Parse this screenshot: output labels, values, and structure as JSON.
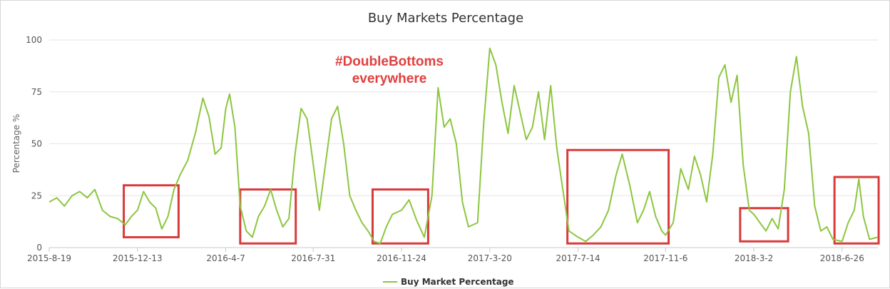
{
  "chart_data": {
    "type": "line",
    "title": "Buy Markets Percentage",
    "ylabel": "Percentage %",
    "xlabel": "",
    "ylim": [
      0,
      100
    ],
    "yticks": [
      0,
      25,
      50,
      75,
      100
    ],
    "grid": true,
    "legend_position": "bottom-center",
    "x_tick_labels": [
      "2015-8-19",
      "2015-12-13",
      "2016-4-7",
      "2016-7-31",
      "2016-11-24",
      "2017-3-20",
      "2017-7-14",
      "2017-11-6",
      "2018-3-2",
      "2018-6-26"
    ],
    "line_color": "#8cc63f",
    "series": [
      {
        "name": "Buy Market Percentage",
        "points": [
          [
            "2015-08-19",
            22
          ],
          [
            "2015-08-29",
            24
          ],
          [
            "2015-09-08",
            20
          ],
          [
            "2015-09-18",
            25
          ],
          [
            "2015-09-28",
            27
          ],
          [
            "2015-10-08",
            24
          ],
          [
            "2015-10-18",
            28
          ],
          [
            "2015-10-28",
            18
          ],
          [
            "2015-11-07",
            15
          ],
          [
            "2015-11-17",
            14
          ],
          [
            "2015-11-27",
            11
          ],
          [
            "2015-12-05",
            15
          ],
          [
            "2015-12-13",
            18
          ],
          [
            "2015-12-21",
            27
          ],
          [
            "2015-12-29",
            22
          ],
          [
            "2016-01-06",
            19
          ],
          [
            "2016-01-14",
            9
          ],
          [
            "2016-01-22",
            15
          ],
          [
            "2016-01-30",
            28
          ],
          [
            "2016-02-07",
            35
          ],
          [
            "2016-02-17",
            42
          ],
          [
            "2016-02-27",
            55
          ],
          [
            "2016-03-08",
            72
          ],
          [
            "2016-03-16",
            63
          ],
          [
            "2016-03-24",
            45
          ],
          [
            "2016-04-01",
            48
          ],
          [
            "2016-04-07",
            67
          ],
          [
            "2016-04-12",
            74
          ],
          [
            "2016-04-19",
            58
          ],
          [
            "2016-04-26",
            20
          ],
          [
            "2016-05-04",
            8
          ],
          [
            "2016-05-12",
            5
          ],
          [
            "2016-05-20",
            15
          ],
          [
            "2016-05-28",
            20
          ],
          [
            "2016-06-05",
            28
          ],
          [
            "2016-06-13",
            18
          ],
          [
            "2016-06-21",
            10
          ],
          [
            "2016-06-29",
            14
          ],
          [
            "2016-07-07",
            45
          ],
          [
            "2016-07-15",
            67
          ],
          [
            "2016-07-23",
            62
          ],
          [
            "2016-07-31",
            40
          ],
          [
            "2016-08-08",
            18
          ],
          [
            "2016-08-16",
            40
          ],
          [
            "2016-08-24",
            62
          ],
          [
            "2016-09-01",
            68
          ],
          [
            "2016-09-09",
            50
          ],
          [
            "2016-09-17",
            25
          ],
          [
            "2016-09-25",
            18
          ],
          [
            "2016-10-03",
            12
          ],
          [
            "2016-10-11",
            8
          ],
          [
            "2016-10-19",
            3
          ],
          [
            "2016-10-27",
            2
          ],
          [
            "2016-11-04",
            10
          ],
          [
            "2016-11-12",
            16
          ],
          [
            "2016-11-24",
            18
          ],
          [
            "2016-12-04",
            23
          ],
          [
            "2016-12-14",
            13
          ],
          [
            "2016-12-24",
            5
          ],
          [
            "2017-01-03",
            25
          ],
          [
            "2017-01-11",
            77
          ],
          [
            "2017-01-19",
            58
          ],
          [
            "2017-01-27",
            62
          ],
          [
            "2017-02-04",
            50
          ],
          [
            "2017-02-12",
            22
          ],
          [
            "2017-02-20",
            10
          ],
          [
            "2017-03-04",
            12
          ],
          [
            "2017-03-12",
            60
          ],
          [
            "2017-03-20",
            96
          ],
          [
            "2017-03-28",
            88
          ],
          [
            "2017-04-05",
            70
          ],
          [
            "2017-04-13",
            55
          ],
          [
            "2017-04-21",
            78
          ],
          [
            "2017-04-29",
            65
          ],
          [
            "2017-05-07",
            52
          ],
          [
            "2017-05-15",
            58
          ],
          [
            "2017-05-23",
            75
          ],
          [
            "2017-05-31",
            52
          ],
          [
            "2017-06-08",
            78
          ],
          [
            "2017-06-16",
            48
          ],
          [
            "2017-06-24",
            28
          ],
          [
            "2017-07-02",
            8
          ],
          [
            "2017-07-14",
            5
          ],
          [
            "2017-07-24",
            3
          ],
          [
            "2017-08-03",
            6
          ],
          [
            "2017-08-13",
            10
          ],
          [
            "2017-08-23",
            18
          ],
          [
            "2017-09-02",
            35
          ],
          [
            "2017-09-10",
            45
          ],
          [
            "2017-09-20",
            30
          ],
          [
            "2017-09-30",
            12
          ],
          [
            "2017-10-08",
            18
          ],
          [
            "2017-10-16",
            27
          ],
          [
            "2017-10-24",
            15
          ],
          [
            "2017-11-01",
            8
          ],
          [
            "2017-11-06",
            6
          ],
          [
            "2017-11-16",
            12
          ],
          [
            "2017-11-26",
            38
          ],
          [
            "2017-12-06",
            28
          ],
          [
            "2017-12-14",
            44
          ],
          [
            "2017-12-22",
            35
          ],
          [
            "2017-12-30",
            22
          ],
          [
            "2018-01-07",
            45
          ],
          [
            "2018-01-15",
            82
          ],
          [
            "2018-01-23",
            88
          ],
          [
            "2018-01-31",
            70
          ],
          [
            "2018-02-08",
            83
          ],
          [
            "2018-02-16",
            40
          ],
          [
            "2018-02-24",
            18
          ],
          [
            "2018-03-02",
            16
          ],
          [
            "2018-03-10",
            12
          ],
          [
            "2018-03-18",
            8
          ],
          [
            "2018-03-26",
            14
          ],
          [
            "2018-04-03",
            9
          ],
          [
            "2018-04-11",
            28
          ],
          [
            "2018-04-19",
            75
          ],
          [
            "2018-04-27",
            92
          ],
          [
            "2018-05-05",
            68
          ],
          [
            "2018-05-13",
            55
          ],
          [
            "2018-05-21",
            20
          ],
          [
            "2018-05-29",
            8
          ],
          [
            "2018-06-06",
            10
          ],
          [
            "2018-06-14",
            4
          ],
          [
            "2018-06-26",
            3
          ],
          [
            "2018-07-04",
            12
          ],
          [
            "2018-07-12",
            18
          ],
          [
            "2018-07-18",
            33
          ],
          [
            "2018-07-24",
            15
          ],
          [
            "2018-08-01",
            4
          ],
          [
            "2018-08-12",
            5
          ]
        ]
      }
    ],
    "annotation": {
      "line1": "#DoubleBottoms",
      "line2": "everywhere",
      "color": "#e0403f"
    },
    "highlight_boxes": [
      {
        "x0": "2015-11-25",
        "x1": "2016-02-05",
        "y0": 5,
        "y1": 30
      },
      {
        "x0": "2016-04-26",
        "x1": "2016-07-08",
        "y0": 2,
        "y1": 28
      },
      {
        "x0": "2016-10-17",
        "x1": "2016-12-29",
        "y0": 2,
        "y1": 28
      },
      {
        "x0": "2017-06-30",
        "x1": "2017-11-10",
        "y0": 2,
        "y1": 47
      },
      {
        "x0": "2018-02-12",
        "x1": "2018-04-16",
        "y0": 3,
        "y1": 19
      },
      {
        "x0": "2018-06-16",
        "x1": "2018-08-13",
        "y0": 2,
        "y1": 34
      }
    ],
    "highlight_color": "#d93a3a"
  }
}
